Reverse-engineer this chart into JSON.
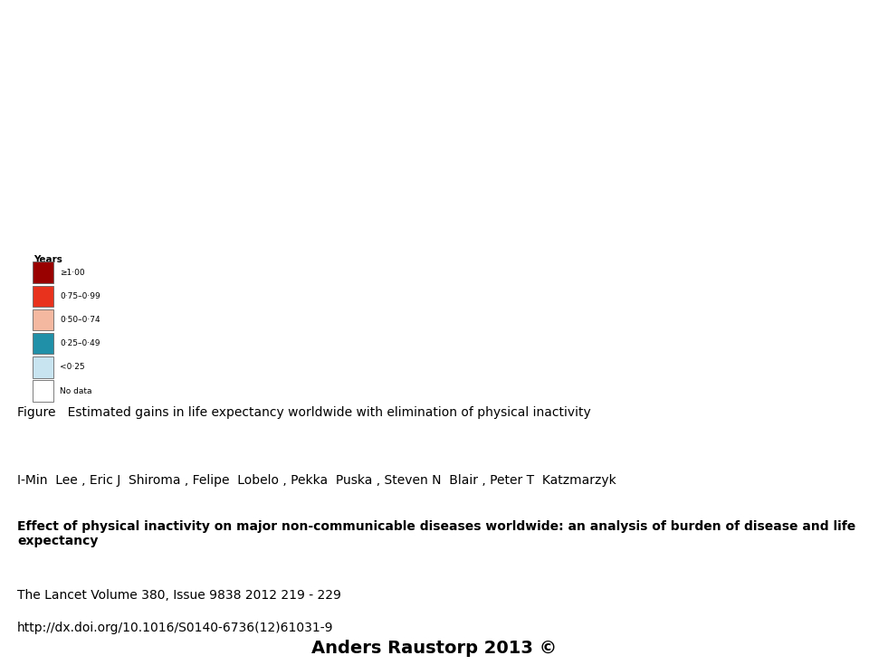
{
  "figure_width": 9.6,
  "figure_height": 7.35,
  "dpi": 100,
  "bg_color": "#ffffff",
  "map_bg_color": "#c5dce8",
  "ocean_color": "#c5dce8",
  "border_color": "#7a6a5a",
  "border_lw": 0.4,
  "legend_title": "Years",
  "legend_labels": [
    "≥1·00",
    "0·75–0·99",
    "0·50–0·74",
    "0·25–0·49",
    "<0·25",
    "No data"
  ],
  "legend_colors": [
    "#990000",
    "#e8321e",
    "#f4b8a0",
    "#2090a8",
    "#c8e4f0",
    "#ffffff"
  ],
  "country_colors": {
    "USA": "#e8321e",
    "Canada": "#f4b8a0",
    "Mexico": "#f4b8a0",
    "Greenland": "#ffffff",
    "Alaska": "#990000",
    "Brazil": "#990000",
    "Argentina": "#990000",
    "Chile": "#990000",
    "Colombia": "#e8321e",
    "Venezuela": "#e8321e",
    "Peru": "#990000",
    "Bolivia": "#990000",
    "Ecuador": "#990000",
    "Paraguay": "#990000",
    "Uruguay": "#990000",
    "Guyana": "#e8321e",
    "Suriname": "#e8321e",
    "Russia": "#f4b8a0",
    "China": "#f4b8a0",
    "India": "#e8321e",
    "Australia": "#f4b8a0",
    "Kazakhstan": "#f4b8a0",
    "Saudi Arabia": "#e8321e",
    "Iran": "#e8321e",
    "Turkey": "#e8321e",
    "Egypt": "#e8321e",
    "Libya": "#e8321e",
    "Algeria": "#e8321e",
    "Morocco": "#e8321e",
    "Tunisia": "#e8321e",
    "Sudan": "#990000",
    "Ethiopia": "#2090a8",
    "Kenya": "#2090a8",
    "Tanzania": "#2090a8",
    "Uganda": "#2090a8",
    "South Africa": "#990000",
    "Mozambique": "#990000",
    "Zimbabwe": "#990000",
    "Zambia": "#990000",
    "Angola": "#990000",
    "Nigeria": "#2090a8",
    "Ghana": "#2090a8",
    "Cameroon": "#2090a8",
    "Congo": "#2090a8",
    "Dem. Rep. Congo": "#2090a8",
    "Madagascar": "#2090a8",
    "Somalia": "#2090a8",
    "Mali": "#2090a8",
    "Niger": "#2090a8",
    "Chad": "#2090a8",
    "Senegal": "#2090a8",
    "Ivory Coast": "#2090a8",
    "Guinea": "#2090a8",
    "Japan": "#2090a8",
    "South Korea": "#2090a8",
    "North Korea": "#2090a8",
    "Indonesia": "#2090a8",
    "Pakistan": "#e8321e",
    "Bangladesh": "#e8321e",
    "Myanmar": "#2090a8",
    "Thailand": "#2090a8",
    "Vietnam": "#2090a8",
    "Philippines": "#2090a8",
    "Malaysia": "#2090a8",
    "Germany": "#2090a8",
    "France": "#2090a8",
    "United Kingdom": "#2090a8",
    "Italy": "#2090a8",
    "Spain": "#2090a8",
    "Poland": "#2090a8",
    "Ukraine": "#2090a8",
    "Sweden": "#c8e4f0",
    "Norway": "#c8e4f0",
    "Finland": "#c8e4f0",
    "Denmark": "#c8e4f0",
    "Netherlands": "#2090a8",
    "Belgium": "#2090a8",
    "Switzerland": "#2090a8",
    "Austria": "#2090a8",
    "Czech Republic": "#2090a8",
    "Romania": "#2090a8",
    "Hungary": "#2090a8",
    "Portugal": "#2090a8",
    "Greece": "#2090a8",
    "Belarus": "#2090a8",
    "New Zealand": "#e8321e"
  },
  "iso_colors": {
    "USA": "#e8321e",
    "CAN": "#f4b8a0",
    "MEX": "#f4b8a0",
    "GRL": "#ffffff",
    "BRA": "#990000",
    "ARG": "#990000",
    "CHL": "#990000",
    "COL": "#e8321e",
    "VEN": "#e8321e",
    "PER": "#990000",
    "BOL": "#990000",
    "ECU": "#990000",
    "PRY": "#990000",
    "URY": "#990000",
    "GUY": "#e8321e",
    "SUR": "#e8321e",
    "RUS": "#f4b8a0",
    "CHN": "#f4b8a0",
    "IND": "#e8321e",
    "AUS": "#f4b8a0",
    "KAZ": "#f4b8a0",
    "SAU": "#e8321e",
    "IRN": "#e8321e",
    "TUR": "#e8321e",
    "EGY": "#e8321e",
    "LBY": "#e8321e",
    "DZA": "#e8321e",
    "MAR": "#e8321e",
    "TUN": "#e8321e",
    "SDN": "#990000",
    "SSD": "#990000",
    "ETH": "#2090a8",
    "KEN": "#2090a8",
    "TZA": "#2090a8",
    "UGA": "#2090a8",
    "ZAF": "#990000",
    "MOZ": "#990000",
    "ZWE": "#990000",
    "ZMB": "#990000",
    "AGO": "#990000",
    "NGA": "#2090a8",
    "GHA": "#2090a8",
    "CMR": "#2090a8",
    "COG": "#2090a8",
    "COD": "#2090a8",
    "MDG": "#2090a8",
    "SOM": "#2090a8",
    "MLI": "#2090a8",
    "NER": "#2090a8",
    "TCD": "#2090a8",
    "SEN": "#2090a8",
    "CIV": "#2090a8",
    "GIN": "#2090a8",
    "JPN": "#2090a8",
    "KOR": "#2090a8",
    "PRK": "#2090a8",
    "IDN": "#2090a8",
    "PAK": "#e8321e",
    "BGD": "#e8321e",
    "MMR": "#2090a8",
    "THA": "#2090a8",
    "VNM": "#2090a8",
    "PHL": "#2090a8",
    "MYS": "#2090a8",
    "DEU": "#2090a8",
    "FRA": "#2090a8",
    "GBR": "#2090a8",
    "ITA": "#2090a8",
    "ESP": "#2090a8",
    "POL": "#2090a8",
    "UKR": "#2090a8",
    "SWE": "#c8e4f0",
    "NOR": "#c8e4f0",
    "FIN": "#c8e4f0",
    "DNK": "#c8e4f0",
    "NLD": "#2090a8",
    "BEL": "#2090a8",
    "CHE": "#2090a8",
    "AUT": "#2090a8",
    "CZE": "#2090a8",
    "ROU": "#2090a8",
    "HUN": "#2090a8",
    "PRT": "#2090a8",
    "GRC": "#2090a8",
    "BLR": "#2090a8",
    "NZL": "#e8321e",
    "ISL": "#c8e4f0",
    "IRL": "#2090a8",
    "MNG": "#f4b8a0",
    "UZB": "#f4b8a0",
    "TKM": "#f4b8a0",
    "AFG": "#e8321e",
    "IRQ": "#e8321e",
    "SYR": "#e8321e",
    "YEM": "#e8321e",
    "OMN": "#e8321e",
    "ARE": "#e8321e",
    "KWT": "#e8321e",
    "QAT": "#e8321e",
    "JOR": "#e8321e",
    "ISR": "#2090a8",
    "LBN": "#2090a8",
    "MRT": "#2090a8",
    "BFA": "#2090a8",
    "BEN": "#2090a8",
    "TGO": "#2090a8",
    "SLE": "#2090a8",
    "LBR": "#2090a8",
    "GAB": "#2090a8",
    "CAF": "#2090a8",
    "RWA": "#2090a8",
    "BDI": "#2090a8",
    "MWI": "#990000",
    "NAM": "#990000",
    "BWA": "#990000",
    "LSO": "#990000",
    "SWZ": "#990000",
    "ERI": "#2090a8",
    "DJI": "#2090a8",
    "LKA": "#e8321e",
    "NPL": "#e8321e",
    "BTN": "#e8321e",
    "KHM": "#2090a8",
    "LAO": "#2090a8",
    "PNG": "#2090a8",
    "SVK": "#2090a8",
    "BGR": "#2090a8",
    "SRB": "#2090a8",
    "HRV": "#2090a8",
    "BIH": "#2090a8",
    "ALB": "#2090a8",
    "MKD": "#2090a8",
    "LTU": "#2090a8",
    "LVA": "#2090a8",
    "EST": "#2090a8",
    "MDA": "#2090a8",
    "SVN": "#2090a8",
    "GEO": "#e8321e",
    "ARM": "#e8321e",
    "AZE": "#e8321e",
    "TJK": "#f4b8a0",
    "KGZ": "#f4b8a0",
    "TWN": "#2090a8",
    "GTM": "#f4b8a0",
    "BLZ": "#f4b8a0",
    "HND": "#f4b8a0",
    "SLV": "#f4b8a0",
    "NIC": "#f4b8a0",
    "CRI": "#f4b8a0",
    "PAN": "#f4b8a0",
    "CUB": "#e8321e",
    "DOM": "#e8321e",
    "HTI": "#e8321e",
    "JAM": "#e8321e",
    "TTO": "#e8321e",
    "FJI": "#2090a8",
    "SLB": "#2090a8"
  },
  "figure_caption": "Figure   Estimated gains in life expectancy worldwide with elimination of physical inactivity",
  "authors": "I-Min  Lee , Eric J  Shiroma , Felipe  Lobelo , Pekka  Puska , Steven N  Blair , Peter T  Katzmarzyk",
  "article_title": "Effect of physical inactivity on major non-communicable diseases worldwide: an analysis of burden of disease and life\nexpectancy",
  "journal_ref": "The Lancet Volume 380, Issue 9838 2012 219 - 229",
  "doi": "http://dx.doi.org/10.1016/S0140-6736(12)61031-9",
  "footer": "Anders Raustorp 2013 ©"
}
